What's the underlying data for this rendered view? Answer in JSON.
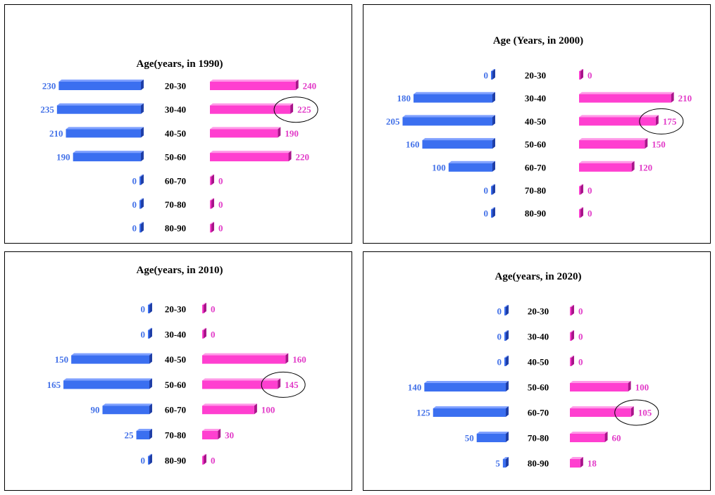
{
  "colors": {
    "left_front": "#3b6ff0",
    "left_top": "#7fa0ff",
    "left_side": "#1f3fa8",
    "right_front": "#ff3fd0",
    "right_top": "#ff9ae8",
    "right_side": "#a8158a",
    "left_label": "#4472e8",
    "right_label": "#e23cc8"
  },
  "chart_data": [
    {
      "type": "bar",
      "title": "Age(years, in 1990)",
      "categories": [
        "20-30",
        "30-40",
        "40-50",
        "50-60",
        "60-70",
        "70-80",
        "80-90"
      ],
      "series": [
        {
          "values": [
            230,
            235,
            210,
            190,
            0,
            0,
            0
          ]
        },
        {
          "values": [
            240,
            225,
            190,
            220,
            0,
            0,
            0
          ]
        }
      ],
      "highlight": {
        "category": "30-40",
        "side": "right",
        "value": 225
      }
    },
    {
      "type": "bar",
      "title": "Age (Years, in 2000)",
      "categories": [
        "20-30",
        "30-40",
        "40-50",
        "50-60",
        "60-70",
        "70-80",
        "80-90"
      ],
      "series": [
        {
          "values": [
            0,
            180,
            205,
            160,
            100,
            0,
            0
          ]
        },
        {
          "values": [
            0,
            210,
            175,
            150,
            120,
            0,
            0
          ]
        }
      ],
      "highlight": {
        "category": "40-50",
        "side": "right",
        "value": 175
      }
    },
    {
      "type": "bar",
      "title": "Age(years, in 2010)",
      "categories": [
        "20-30",
        "30-40",
        "40-50",
        "50-60",
        "60-70",
        "70-80",
        "80-90"
      ],
      "series": [
        {
          "values": [
            0,
            0,
            150,
            165,
            90,
            25,
            0
          ]
        },
        {
          "values": [
            0,
            0,
            160,
            145,
            100,
            30,
            0
          ]
        }
      ],
      "highlight": {
        "category": "50-60",
        "side": "right",
        "value": 145
      }
    },
    {
      "type": "bar",
      "title": "Age(years, in 2020)",
      "categories": [
        "20-30",
        "30-40",
        "40-50",
        "50-60",
        "60-70",
        "70-80",
        "80-90"
      ],
      "series": [
        {
          "values": [
            0,
            0,
            0,
            140,
            125,
            50,
            5
          ]
        },
        {
          "values": [
            0,
            0,
            0,
            100,
            105,
            60,
            18
          ]
        }
      ],
      "highlight": {
        "category": "60-70",
        "side": "right",
        "value": 105
      }
    }
  ]
}
